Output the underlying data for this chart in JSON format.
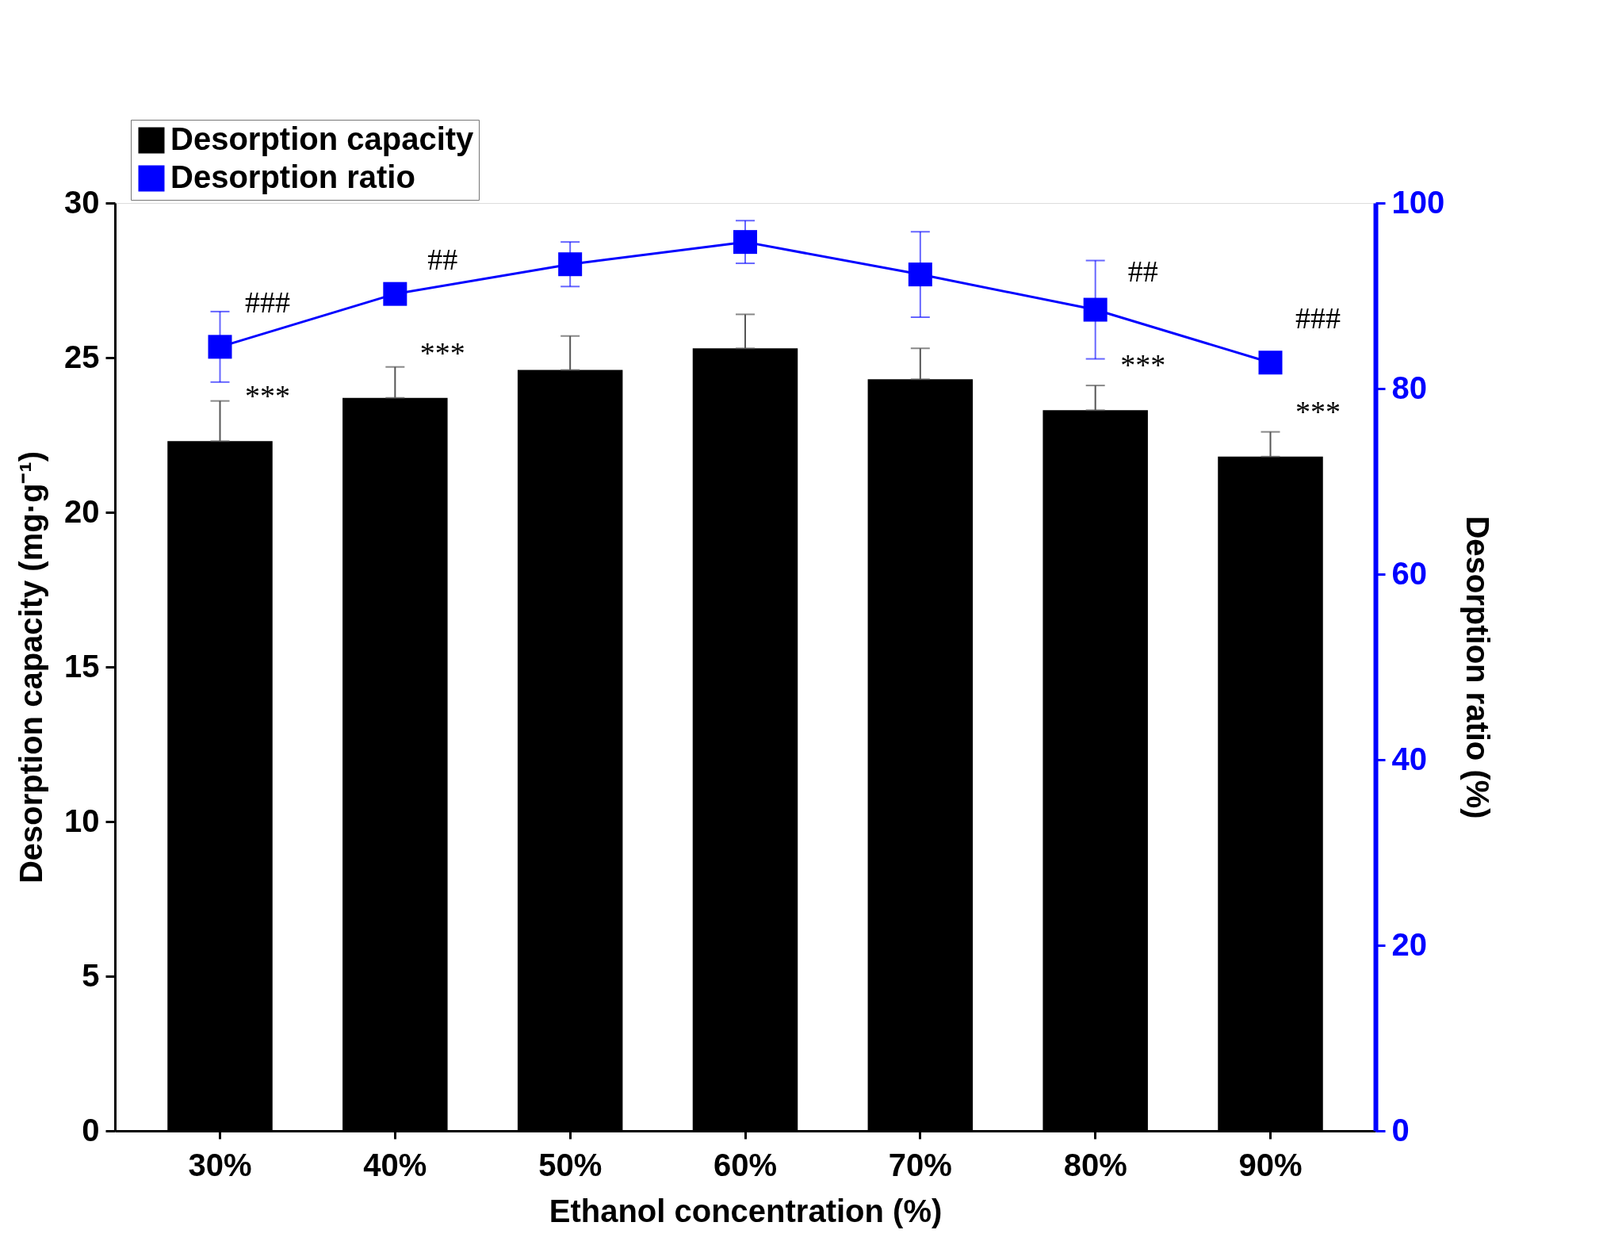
{
  "chart_data": {
    "type": "bar",
    "xlabel": "Ethanol concentration (%)",
    "ylabel": "Desorption capacity (mg·g⁻¹)",
    "y2label": "Desorption ratio (%)",
    "categories": [
      "30%",
      "40%",
      "50%",
      "60%",
      "70%",
      "80%",
      "90%"
    ],
    "series": [
      {
        "name": "Desorption capacity",
        "color": "#000000",
        "values": [
          22.3,
          23.7,
          24.6,
          25.3,
          24.3,
          23.3,
          21.8
        ],
        "errors": [
          1.3,
          1.0,
          1.1,
          1.1,
          1.0,
          0.8,
          0.8
        ]
      },
      {
        "name": "Desorption ratio",
        "type": "line",
        "axis": "y2",
        "color": "#0000ff",
        "marker": "square",
        "values": [
          84.5,
          90.2,
          93.4,
          95.8,
          92.3,
          88.5,
          82.8
        ],
        "errors": [
          3.8,
          null,
          2.4,
          2.3,
          4.6,
          5.3,
          null
        ]
      }
    ],
    "ylim": [
      0,
      30
    ],
    "yticks": [
      0,
      5,
      10,
      15,
      20,
      25,
      30
    ],
    "y2lim": [
      0,
      100
    ],
    "y2ticks": [
      0,
      20,
      40,
      60,
      80,
      100
    ],
    "annotations": [
      "###",
      {
        "text": "***",
        "x": "30%",
        "y": 22.3
      },
      "##",
      {
        "text": "***",
        "x": "40%",
        "y": 23.7
      },
      "##",
      {
        "text": "***",
        "x": "80%",
        "y": 23.3
      },
      "###",
      {
        "text": "***",
        "x": "90%",
        "y": 21.8
      }
    ],
    "legend": "top left",
    "grid": false
  }
}
